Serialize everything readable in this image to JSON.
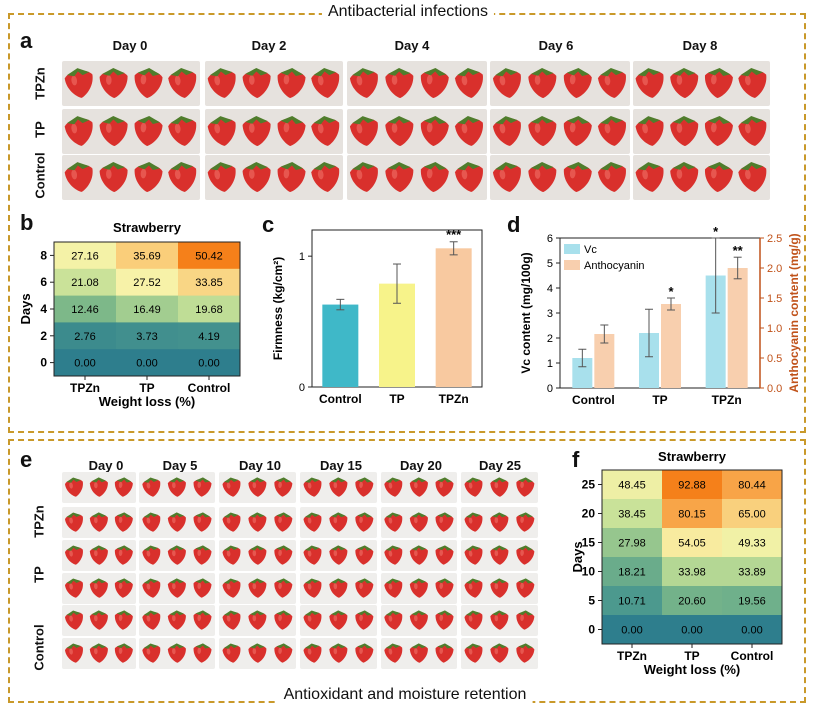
{
  "sections": {
    "top_title": "Antibacterial infections",
    "bottom_title": "Antioxidant and moisture retention"
  },
  "panel_labels": {
    "a": "a",
    "b": "b",
    "c": "c",
    "d": "d",
    "e": "e",
    "f": "f"
  },
  "panel_a": {
    "days": [
      "Day 0",
      "Day 2",
      "Day 4",
      "Day 6",
      "Day 8"
    ],
    "rows": [
      "TPZn",
      "TP",
      "Control"
    ]
  },
  "panel_e": {
    "days": [
      "Day 0",
      "Day 5",
      "Day 10",
      "Day 15",
      "Day 20",
      "Day 25"
    ],
    "rows": [
      "TPZn",
      "TP",
      "Control"
    ]
  },
  "colors": {
    "frame": "#c9992a",
    "control_bar": "#3fb8c8",
    "tp_bar": "#f7f38a",
    "tpzn_bar": "#f8c9a0",
    "vc_bar": "#a8e0ec",
    "anthocyanin_bar": "#f8cfae",
    "anthocyanin_axis": "#c0521a"
  },
  "chart_data": [
    {
      "id": "b",
      "type": "heatmap",
      "title": "Strawberry",
      "xlabel": "Weight loss (%)",
      "ylabel": "Days",
      "x_categories": [
        "TPZn",
        "TP",
        "Control"
      ],
      "y_categories": [
        "8",
        "6",
        "4",
        "2",
        "0"
      ],
      "values": [
        [
          27.16,
          35.69,
          50.42
        ],
        [
          21.08,
          27.52,
          33.85
        ],
        [
          12.46,
          16.49,
          19.68
        ],
        [
          2.76,
          3.73,
          4.19
        ],
        [
          0.0,
          0.0,
          0.0
        ]
      ],
      "labels": [
        [
          "27.16",
          "35.69",
          "50.42"
        ],
        [
          "21.08",
          "27.52",
          "33.85"
        ],
        [
          "12.46",
          "16.49",
          "19.68"
        ],
        [
          "2.76",
          "3.73",
          "4.19"
        ],
        [
          "0.00",
          "0.00",
          "0.00"
        ]
      ]
    },
    {
      "id": "c",
      "type": "bar",
      "ylabel": "Firmness (kg/cm²)",
      "categories": [
        "Control",
        "TP",
        "TPZn"
      ],
      "values": [
        0.63,
        0.79,
        1.06
      ],
      "errors": [
        0.04,
        0.15,
        0.05
      ],
      "ylim": [
        0,
        1.2
      ],
      "yticks": [
        "0",
        "1"
      ],
      "annotations": [
        "",
        "",
        "***"
      ]
    },
    {
      "id": "d",
      "type": "bar",
      "categories": [
        "Control",
        "TP",
        "TPZn"
      ],
      "ylabel": "Vc content (mg/100g)",
      "ylabel_right": "Anthocyanin content (mg/g)",
      "ylim": [
        0,
        6
      ],
      "ylim_right": [
        0,
        2.5
      ],
      "yticks": [
        "0",
        "1",
        "2",
        "3",
        "4",
        "5",
        "6"
      ],
      "yticks_right": [
        "0.0",
        "0.5",
        "1.0",
        "1.5",
        "2.0",
        "2.5"
      ],
      "series": [
        {
          "name": "Vc",
          "values": [
            1.2,
            2.2,
            4.5
          ],
          "errors": [
            0.35,
            0.95,
            1.5
          ],
          "annotations": [
            "",
            "",
            "*"
          ]
        },
        {
          "name": "Anthocyanin",
          "values": [
            0.9,
            1.4,
            2.0
          ],
          "errors": [
            0.15,
            0.1,
            0.18
          ],
          "annotations": [
            "",
            "*",
            "**"
          ]
        }
      ]
    },
    {
      "id": "f",
      "type": "heatmap",
      "title": "Strawberry",
      "xlabel": "Weight loss (%)",
      "ylabel": "Days",
      "x_categories": [
        "TPZn",
        "TP",
        "Control"
      ],
      "y_categories": [
        "25",
        "20",
        "15",
        "10",
        "5",
        "0"
      ],
      "values": [
        [
          48.45,
          92.88,
          80.44
        ],
        [
          38.45,
          80.15,
          65.0
        ],
        [
          27.98,
          54.05,
          49.33
        ],
        [
          18.21,
          33.98,
          33.89
        ],
        [
          10.71,
          20.6,
          19.56
        ],
        [
          0.0,
          0.0,
          0.0
        ]
      ],
      "labels": [
        [
          "48.45",
          "92.88",
          "80.44"
        ],
        [
          "38.45",
          "80.15",
          "65.00"
        ],
        [
          "27.98",
          "54.05",
          "49.33"
        ],
        [
          "18.21",
          "33.98",
          "33.89"
        ],
        [
          "10.71",
          "20.60",
          "19.56"
        ],
        [
          "0.00",
          "0.00",
          "0.00"
        ]
      ]
    }
  ]
}
